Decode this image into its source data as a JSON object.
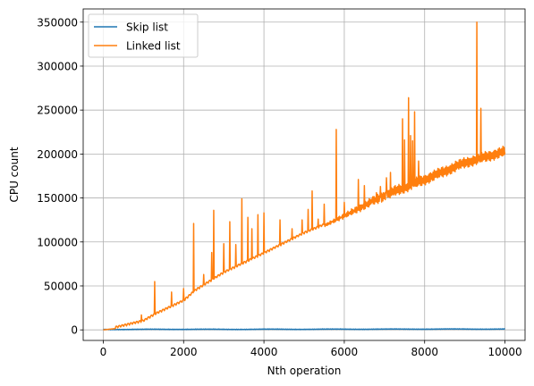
{
  "chart_data": {
    "type": "line",
    "xlabel": "Nth operation",
    "ylabel": "CPU count",
    "xlim": [
      -500,
      10500
    ],
    "ylim": [
      -12000,
      365000
    ],
    "xticks": [
      0,
      2000,
      4000,
      6000,
      8000,
      10000
    ],
    "yticks": [
      0,
      50000,
      100000,
      150000,
      200000,
      250000,
      300000,
      350000
    ],
    "grid": true,
    "legend_position": "top-left",
    "series": [
      {
        "name": "Skip list",
        "color": "#1f77b4",
        "points": [
          [
            0,
            500
          ],
          [
            1000,
            600
          ],
          [
            2000,
            700
          ],
          [
            3000,
            600
          ],
          [
            4000,
            700
          ],
          [
            5000,
            700
          ],
          [
            6000,
            800
          ],
          [
            7000,
            800
          ],
          [
            8000,
            900
          ],
          [
            9000,
            900
          ],
          [
            10000,
            900
          ]
        ]
      },
      {
        "name": "Linked list",
        "color": "#ff7f0e",
        "baseline": [
          [
            0,
            0
          ],
          [
            300,
            1500
          ],
          [
            1000,
            9000
          ],
          [
            1300,
            17000
          ],
          [
            2000,
            32000
          ],
          [
            2300,
            44000
          ],
          [
            3000,
            64000
          ],
          [
            4000,
            86000
          ],
          [
            5000,
            109000
          ],
          [
            6000,
            128000
          ],
          [
            7000,
            148000
          ],
          [
            8000,
            166000
          ],
          [
            9000,
            185000
          ],
          [
            10000,
            198000
          ]
        ],
        "band_offset": 10000,
        "band_start_x": 5500,
        "spikes": [
          [
            950,
            17000
          ],
          [
            1280,
            55000
          ],
          [
            1700,
            43000
          ],
          [
            2000,
            47000
          ],
          [
            2250,
            121000
          ],
          [
            2500,
            63000
          ],
          [
            2700,
            88000
          ],
          [
            2750,
            136000
          ],
          [
            3000,
            98000
          ],
          [
            3150,
            123000
          ],
          [
            3300,
            97000
          ],
          [
            3450,
            149000
          ],
          [
            3600,
            128000
          ],
          [
            3700,
            115000
          ],
          [
            3850,
            131000
          ],
          [
            4000,
            133000
          ],
          [
            4400,
            125000
          ],
          [
            4700,
            115000
          ],
          [
            4950,
            125000
          ],
          [
            5100,
            137000
          ],
          [
            5200,
            158000
          ],
          [
            5350,
            126000
          ],
          [
            5500,
            143000
          ],
          [
            5800,
            228000
          ],
          [
            6000,
            145000
          ],
          [
            6350,
            171000
          ],
          [
            6500,
            164000
          ],
          [
            6700,
            150000
          ],
          [
            6800,
            156000
          ],
          [
            6900,
            163000
          ],
          [
            7050,
            173000
          ],
          [
            7150,
            179000
          ],
          [
            7450,
            240000
          ],
          [
            7500,
            216000
          ],
          [
            7600,
            264000
          ],
          [
            7650,
            221000
          ],
          [
            7700,
            215000
          ],
          [
            7750,
            248000
          ],
          [
            7850,
            192000
          ],
          [
            9300,
            350000
          ],
          [
            9400,
            252000
          ]
        ]
      }
    ]
  }
}
